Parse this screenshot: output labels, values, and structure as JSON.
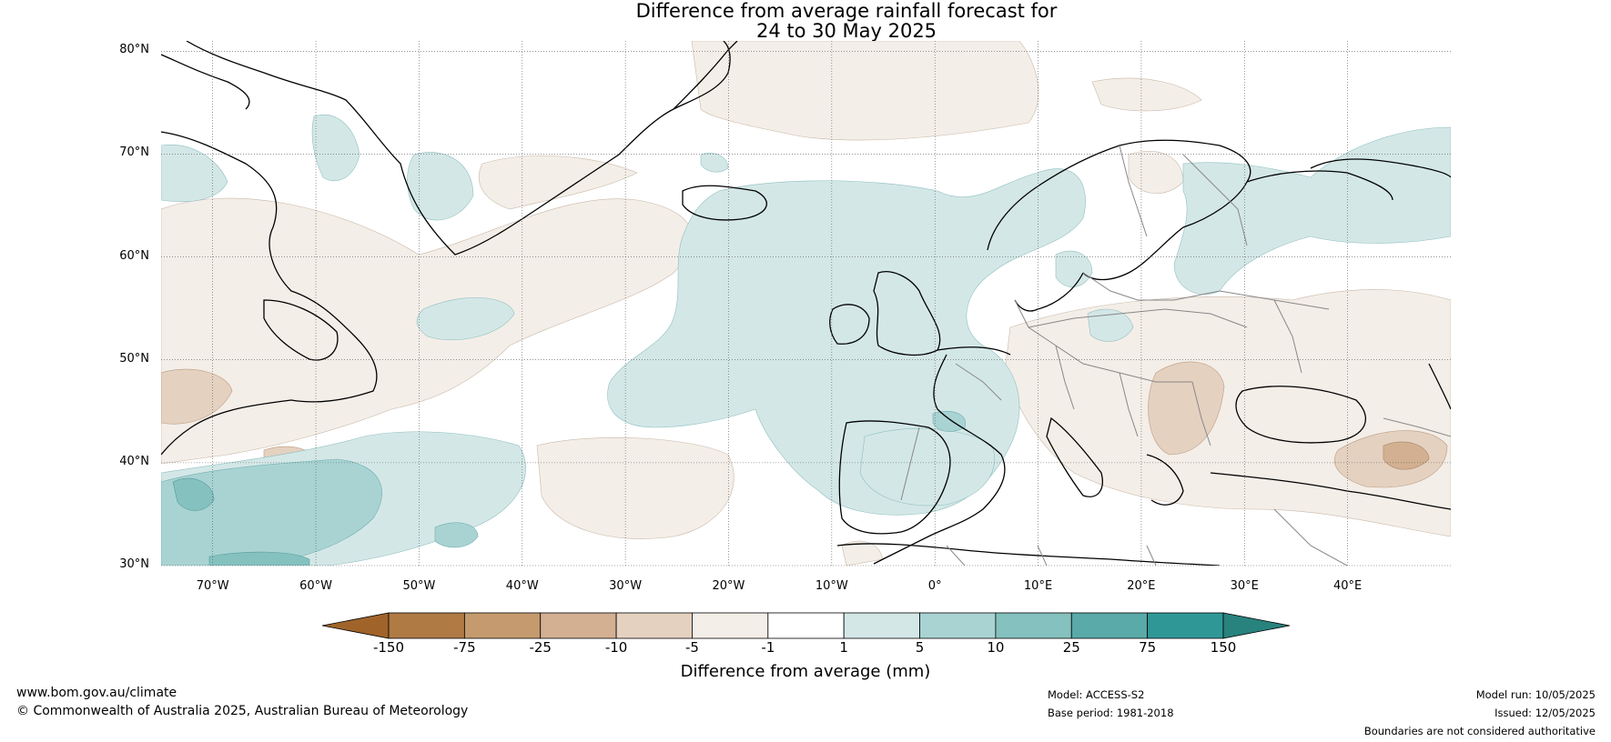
{
  "title": {
    "line1": "Difference from average rainfall forecast for",
    "line2": "24 to 30 May 2025"
  },
  "map": {
    "lat_labels": [
      "80°N",
      "70°N",
      "60°N",
      "50°N",
      "40°N",
      "30°N"
    ],
    "lon_labels": [
      "70°W",
      "60°W",
      "50°W",
      "40°W",
      "30°W",
      "20°W",
      "10°W",
      "0°",
      "10°E",
      "20°E",
      "30°E",
      "40°E"
    ],
    "extent": {
      "lon_min": -75,
      "lon_max": 50,
      "lat_min": 30,
      "lat_max": 81
    },
    "gridlines": true
  },
  "legend": {
    "title": "Difference from average (mm)",
    "tick_labels": [
      "-150",
      "-75",
      "-25",
      "-10",
      "-5",
      "-1",
      "1",
      "5",
      "10",
      "25",
      "75",
      "150"
    ],
    "colors": [
      "#a0642a",
      "#b07a45",
      "#c49a6e",
      "#d2b091",
      "#e5d1c0",
      "#f4eee8",
      "#ffffff",
      "#d4e7e7",
      "#a9d3d3",
      "#84c1bf",
      "#5aaaa9",
      "#2f9897",
      "#28827e"
    ],
    "extend": "both"
  },
  "footer": {
    "website": "www.bom.gov.au/climate",
    "copyright": "© Commonwealth of Australia 2025, Australian Bureau of Meteorology",
    "model": "Model: ACCESS-S2",
    "base_period": "Base period: 1981-2018",
    "model_run": "Model run: 10/05/2025",
    "issued": "Issued: 12/05/2025",
    "disclaimer": "Boundaries are not considered authoritative"
  }
}
